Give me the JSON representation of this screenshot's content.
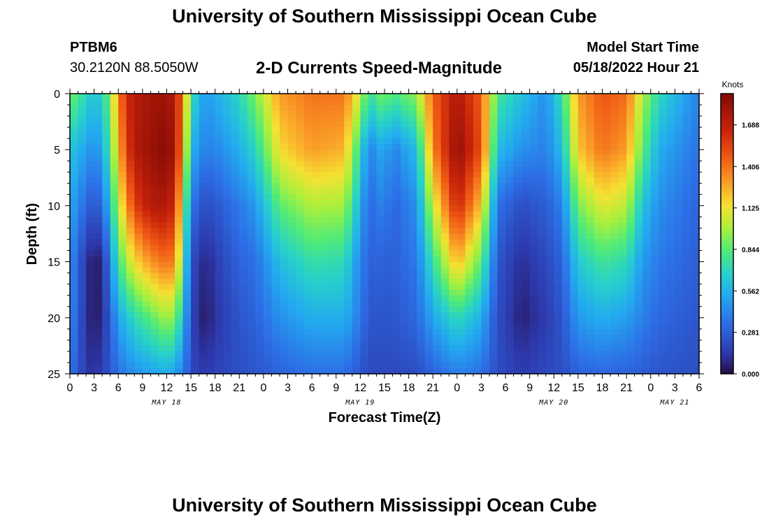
{
  "header": {
    "title": "University of Southern Mississippi Ocean Cube",
    "station": "PTBM6",
    "coords": "30.2120N  88.5050W",
    "subtitle": "2-D Currents Speed-Magnitude",
    "model_start_label": "Model Start Time",
    "model_start_value": "05/18/2022 Hour 21"
  },
  "footer": {
    "title": "University of Southern Mississippi Ocean Cube"
  },
  "chart_data": {
    "type": "heatmap",
    "title": "2-D Currents Speed-Magnitude",
    "xlabel": "Forecast Time(Z)",
    "ylabel": "Depth (ft)",
    "x_tick_labels": [
      "0",
      "3",
      "6",
      "9",
      "12",
      "15",
      "18",
      "21",
      "0",
      "3",
      "6",
      "9",
      "12",
      "15",
      "18",
      "21",
      "0",
      "3",
      "6",
      "9",
      "12",
      "15",
      "18",
      "21",
      "0",
      "3",
      "6"
    ],
    "x_date_labels": [
      {
        "label": "MAY 18",
        "tick_index": 4
      },
      {
        "label": "MAY 19",
        "tick_index": 12
      },
      {
        "label": "MAY 20",
        "tick_index": 20
      },
      {
        "label": "MAY 21",
        "tick_index": 25
      }
    ],
    "y_ticks": [
      0,
      5,
      10,
      15,
      20,
      25
    ],
    "ylim": [
      25,
      0
    ],
    "x_range_hours": [
      0,
      78
    ],
    "colorbar": {
      "unit": "Knots",
      "ticks": [
        "0.000",
        "0.281",
        "0.562",
        "0.844",
        "1.125",
        "1.406",
        "1.688"
      ],
      "tick_values": [
        0.0,
        0.281,
        0.562,
        0.844,
        1.125,
        1.406,
        1.688
      ],
      "max": 1.9
    },
    "depth_levels_ft": [
      0,
      5,
      10,
      15,
      20,
      25
    ],
    "profiles": [
      {
        "hour": 0,
        "speed": [
          0.9,
          0.62,
          0.52,
          0.45,
          0.45,
          0.38
        ]
      },
      {
        "hour": 1,
        "speed": [
          0.82,
          0.58,
          0.44,
          0.3,
          0.28,
          0.25
        ]
      },
      {
        "hour": 2,
        "speed": [
          0.7,
          0.5,
          0.3,
          0.12,
          0.12,
          0.15
        ]
      },
      {
        "hour": 3,
        "speed": [
          0.62,
          0.45,
          0.25,
          0.04,
          0.03,
          0.1
        ]
      },
      {
        "hour": 4,
        "speed": [
          0.68,
          0.52,
          0.32,
          0.08,
          0.1,
          0.18
        ]
      },
      {
        "hour": 5,
        "speed": [
          0.92,
          0.82,
          0.62,
          0.42,
          0.28,
          0.25
        ]
      },
      {
        "hour": 6,
        "speed": [
          1.35,
          1.22,
          1.02,
          0.78,
          0.52,
          0.35
        ]
      },
      {
        "hour": 7,
        "speed": [
          1.62,
          1.55,
          1.3,
          0.98,
          0.62,
          0.4
        ]
      },
      {
        "hour": 8,
        "speed": [
          1.72,
          1.72,
          1.55,
          1.15,
          0.72,
          0.45
        ]
      },
      {
        "hour": 10,
        "speed": [
          1.78,
          1.82,
          1.72,
          1.32,
          0.85,
          0.5
        ]
      },
      {
        "hour": 12,
        "speed": [
          1.8,
          1.88,
          1.75,
          1.42,
          0.98,
          0.55
        ]
      },
      {
        "hour": 13,
        "speed": [
          1.72,
          1.78,
          1.62,
          1.35,
          0.92,
          0.5
        ]
      },
      {
        "hour": 14,
        "speed": [
          1.38,
          1.3,
          1.05,
          0.85,
          0.62,
          0.38
        ]
      },
      {
        "hour": 15,
        "speed": [
          0.8,
          0.6,
          0.4,
          0.25,
          0.22,
          0.22
        ]
      },
      {
        "hour": 16,
        "speed": [
          0.55,
          0.45,
          0.25,
          0.12,
          0.08,
          0.15
        ]
      },
      {
        "hour": 17,
        "speed": [
          0.5,
          0.4,
          0.22,
          0.08,
          0.05,
          0.15
        ]
      },
      {
        "hour": 18,
        "speed": [
          0.55,
          0.42,
          0.25,
          0.15,
          0.12,
          0.18
        ]
      },
      {
        "hour": 21,
        "speed": [
          0.7,
          0.55,
          0.38,
          0.3,
          0.25,
          0.22
        ]
      },
      {
        "hour": 23,
        "speed": [
          0.92,
          0.7,
          0.48,
          0.35,
          0.3,
          0.25
        ]
      },
      {
        "hour": 26,
        "speed": [
          1.3,
          1.15,
          0.85,
          0.6,
          0.45,
          0.3
        ]
      },
      {
        "hour": 30,
        "speed": [
          1.4,
          1.3,
          1.0,
          0.75,
          0.55,
          0.35
        ]
      },
      {
        "hour": 34,
        "speed": [
          1.4,
          1.25,
          0.98,
          0.72,
          0.55,
          0.35
        ]
      },
      {
        "hour": 36,
        "speed": [
          1.05,
          0.72,
          0.55,
          0.42,
          0.38,
          0.25
        ]
      },
      {
        "hour": 37,
        "speed": [
          0.75,
          0.4,
          0.32,
          0.3,
          0.25,
          0.2
        ]
      },
      {
        "hour": 39,
        "speed": [
          0.92,
          0.55,
          0.42,
          0.3,
          0.25,
          0.2
        ]
      },
      {
        "hour": 40,
        "speed": [
          0.8,
          0.4,
          0.3,
          0.28,
          0.25,
          0.2
        ]
      },
      {
        "hour": 43,
        "speed": [
          0.95,
          0.6,
          0.45,
          0.38,
          0.32,
          0.22
        ]
      },
      {
        "hour": 45,
        "speed": [
          1.45,
          1.35,
          1.05,
          0.75,
          0.52,
          0.3
        ]
      },
      {
        "hour": 48,
        "speed": [
          1.75,
          1.85,
          1.65,
          1.25,
          0.72,
          0.4
        ]
      },
      {
        "hour": 51,
        "speed": [
          1.45,
          1.5,
          1.2,
          0.85,
          0.55,
          0.35
        ]
      },
      {
        "hour": 53,
        "speed": [
          0.8,
          0.6,
          0.35,
          0.25,
          0.22,
          0.22
        ]
      },
      {
        "hour": 56,
        "speed": [
          0.62,
          0.45,
          0.22,
          0.1,
          0.06,
          0.15
        ]
      },
      {
        "hour": 59,
        "speed": [
          0.45,
          0.4,
          0.28,
          0.2,
          0.15,
          0.2
        ]
      },
      {
        "hour": 61,
        "speed": [
          0.75,
          0.6,
          0.4,
          0.3,
          0.25,
          0.22
        ]
      },
      {
        "hour": 63,
        "speed": [
          1.3,
          1.2,
          0.9,
          0.65,
          0.48,
          0.3
        ]
      },
      {
        "hour": 66,
        "speed": [
          1.48,
          1.4,
          1.1,
          0.78,
          0.55,
          0.32
        ]
      },
      {
        "hour": 69,
        "speed": [
          1.42,
          1.3,
          1.02,
          0.72,
          0.5,
          0.3
        ]
      },
      {
        "hour": 71,
        "speed": [
          1.0,
          0.85,
          0.62,
          0.48,
          0.4,
          0.28
        ]
      },
      {
        "hour": 73,
        "speed": [
          0.72,
          0.55,
          0.45,
          0.38,
          0.32,
          0.25
        ]
      },
      {
        "hour": 78,
        "speed": [
          0.4,
          0.35,
          0.3,
          0.28,
          0.25,
          0.22
        ]
      }
    ],
    "grid": false
  }
}
